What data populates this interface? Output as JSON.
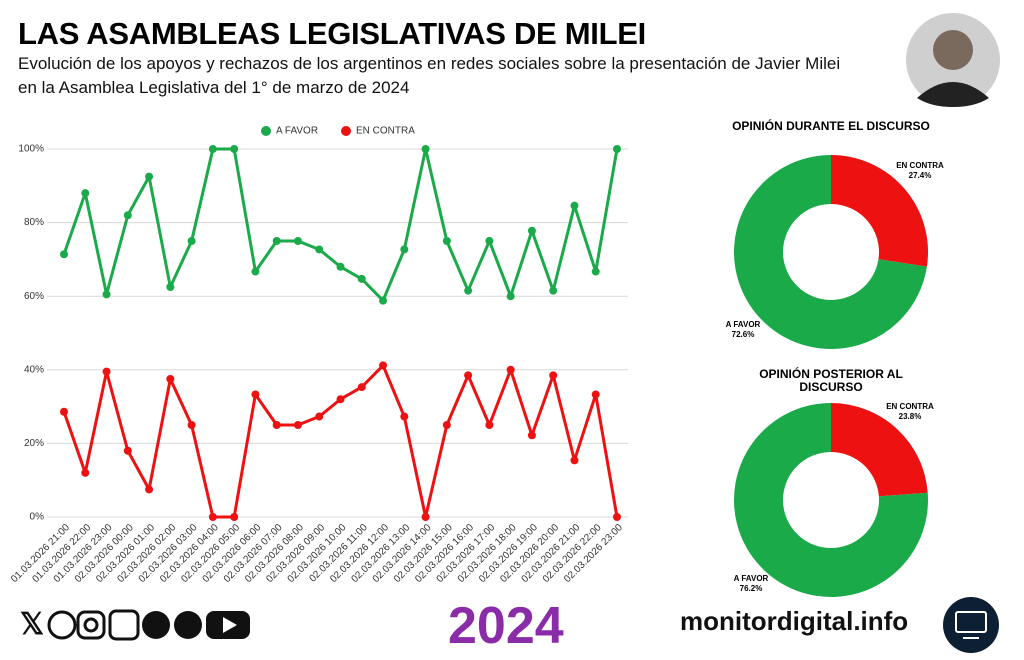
{
  "header": {
    "title": "LAS ASAMBLEAS LEGISLATIVAS DE MILEI",
    "subtitle": "Evolución de los apoyos y rechazos de los argentinos en redes sociales sobre la presentación de Javier Milei en la Asamblea Legislativa del 1° de marzo de 2024"
  },
  "footer": {
    "year": "2024",
    "site": "monitordigital.info"
  },
  "chart_data": [
    {
      "type": "line",
      "categories": [
        "01.03.2026 21:00",
        "01.03.2026 22:00",
        "01.03.2026 23:00",
        "02.03.2026 00:00",
        "02.03.2026 01:00",
        "02.03.2026 02:00",
        "02.03.2026 03:00",
        "02.03.2026 04:00",
        "02.03.2026 05:00",
        "02.03.2026 06:00",
        "02.03.2026 07:00",
        "02.03.2026 08:00",
        "02.03.2026 09:00",
        "02.03.2026 10:00",
        "02.03.2026 11:00",
        "02.03.2026 12:00",
        "02.03.2026 13:00",
        "02.03.2026 14:00",
        "02.03.2026 15:00",
        "02.03.2026 16:00",
        "02.03.2026 17:00",
        "02.03.2026 18:00",
        "02.03.2026 19:00",
        "02.03.2026 20:00",
        "02.03.2026 21:00",
        "02.03.2026 22:00",
        "02.03.2026 23:00"
      ],
      "series": [
        {
          "name": "A FAVOR",
          "color": "#1aaa4a",
          "values": [
            71.4,
            88,
            60.5,
            82,
            92.5,
            62.5,
            75,
            100,
            100,
            66.7,
            75,
            75,
            72.7,
            68,
            64.7,
            58.8,
            72.7,
            100,
            75,
            61.5,
            75,
            60,
            77.8,
            61.5,
            84.6,
            66.7,
            100
          ]
        },
        {
          "name": "EN CONTRA",
          "color": "#ee1111",
          "values": [
            28.6,
            12,
            39.5,
            18,
            7.5,
            37.5,
            25,
            0,
            0,
            33.3,
            25,
            25,
            27.3,
            32,
            35.3,
            41.2,
            27.3,
            0,
            25,
            38.5,
            25,
            40,
            22.2,
            38.5,
            15.4,
            33.3,
            0
          ]
        }
      ],
      "ylim": [
        0,
        100
      ],
      "yticks": [
        {
          "value": 0,
          "label": "0%"
        },
        {
          "value": 20,
          "label": "20%"
        },
        {
          "value": 40,
          "label": "40%"
        },
        {
          "value": 60,
          "label": "60%"
        },
        {
          "value": 80,
          "label": "80%"
        },
        {
          "value": 100,
          "label": "100%"
        }
      ],
      "grid": true,
      "legend": "top"
    },
    {
      "type": "donut",
      "title": "OPINIÓN DURANTE EL DISCURSO",
      "categories": [
        "A FAVOR",
        "EN CONTRA"
      ],
      "values": [
        72.6,
        27.4
      ],
      "value_labels": [
        "72.6%",
        "27.4%"
      ],
      "colors": [
        "#1aaa4a",
        "#ee1111"
      ]
    },
    {
      "type": "donut",
      "title": "OPINIÓN POSTERIOR AL DISCURSO",
      "categories": [
        "A FAVOR",
        "EN CONTRA"
      ],
      "values": [
        76.2,
        23.8
      ],
      "value_labels": [
        "76.2%",
        "23.8%"
      ],
      "colors": [
        "#1aaa4a",
        "#ee1111"
      ]
    }
  ]
}
